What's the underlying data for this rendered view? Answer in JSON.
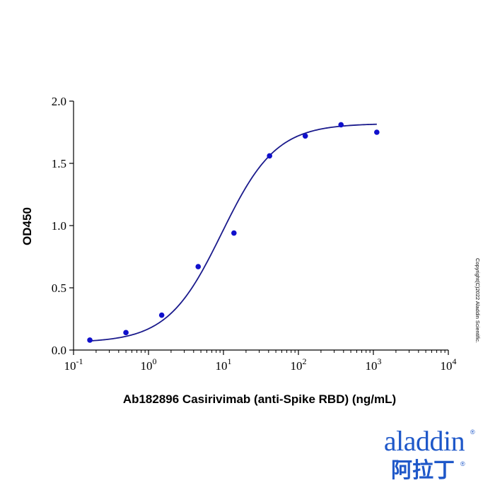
{
  "chart_data": {
    "type": "scatter",
    "xlabel": "Ab182896 Casirivimab (anti-Spike RBD) (ng/mL)",
    "ylabel": "OD450",
    "x_scale": "log",
    "xlim": [
      0.1,
      10000
    ],
    "ylim": [
      0,
      2.0
    ],
    "x_ticks": [
      {
        "value": 0.1,
        "base": "10",
        "exp": "-1"
      },
      {
        "value": 1,
        "base": "10",
        "exp": "0"
      },
      {
        "value": 10,
        "base": "10",
        "exp": "1"
      },
      {
        "value": 100,
        "base": "10",
        "exp": "2"
      },
      {
        "value": 1000,
        "base": "10",
        "exp": "3"
      },
      {
        "value": 10000,
        "base": "10",
        "exp": "4"
      }
    ],
    "y_ticks": [
      {
        "value": 0,
        "label": "0.0"
      },
      {
        "value": 0.5,
        "label": "0.5"
      },
      {
        "value": 1.0,
        "label": "1.0"
      },
      {
        "value": 1.5,
        "label": "1.5"
      },
      {
        "value": 2.0,
        "label": "2.0"
      }
    ],
    "grid": false,
    "points": [
      {
        "x": 0.165,
        "y": 0.08
      },
      {
        "x": 0.5,
        "y": 0.14
      },
      {
        "x": 1.5,
        "y": 0.28
      },
      {
        "x": 4.6,
        "y": 0.67
      },
      {
        "x": 13.8,
        "y": 0.94
      },
      {
        "x": 41.2,
        "y": 1.56
      },
      {
        "x": 123.5,
        "y": 1.72
      },
      {
        "x": 370,
        "y": 1.81
      },
      {
        "x": 1111,
        "y": 1.75
      }
    ],
    "fit": {
      "type": "4PL",
      "bottom": 0.06,
      "top": 1.82,
      "ec50": 9.5,
      "hill": 1.2,
      "x_range": [
        0.165,
        1111
      ]
    },
    "colors": {
      "points": "#1010cc",
      "curve": "#1a1a8c",
      "axis": "#000000"
    }
  },
  "watermark": {
    "copyright": "Copyright(C)2022 Aladdin Scientific."
  },
  "logo": {
    "name_en": "aladdin",
    "name_cn": "阿拉丁",
    "reg_mark": "®",
    "color": "#1f58c9"
  }
}
